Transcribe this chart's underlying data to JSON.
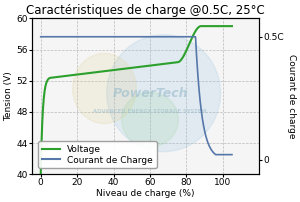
{
  "title": "Caractéristiques de charge @0.5C, 25°C",
  "xlabel": "Niveau de charge (%)",
  "ylabel_left": "Tension (V)",
  "ylabel_right": "Courant de charge",
  "right_y_top_label": "0.5C",
  "right_y_bottom_label": "0",
  "xlim": [
    -5,
    120
  ],
  "ylim_left": [
    40.0,
    60.0
  ],
  "xticks": [
    0,
    20,
    40,
    60,
    80,
    100
  ],
  "yticks_left": [
    40.0,
    44.0,
    48.0,
    52.0,
    56.0,
    60.0
  ],
  "legend_voltage": "Voltage",
  "legend_current": "Courant de Charge",
  "voltage_color": "#2ca02c",
  "current_color": "#5577aa",
  "bg_color": "#f5f5f5",
  "watermark_text": "PowerTech",
  "watermark_sub": "ADVANCED ENERGY STORAGE SYSTEM",
  "title_fontsize": 8.5,
  "axis_fontsize": 6.5,
  "tick_fontsize": 6.5,
  "legend_fontsize": 6.5
}
